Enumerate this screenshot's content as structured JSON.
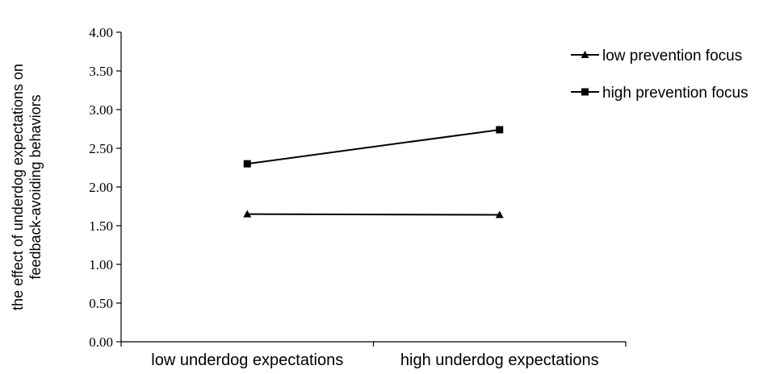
{
  "chart_data": {
    "type": "line",
    "title": "",
    "xlabel": "",
    "ylabel_lines": [
      "the effect of underdog expectations on",
      "feedback-avoiding behaviors"
    ],
    "categories": [
      "low underdog expectations",
      "high underdog expectations"
    ],
    "ylim": [
      0,
      4
    ],
    "yticks": [
      0,
      0.5,
      1,
      1.5,
      2,
      2.5,
      3,
      3.5,
      4
    ],
    "ytick_labels": [
      "0.00",
      "0.50",
      "1.00",
      "1.50",
      "2.00",
      "2.50",
      "3.00",
      "3.50",
      "4.00"
    ],
    "grid": false,
    "legend_position": "top-right",
    "series": [
      {
        "name": "low prevention focus",
        "marker": "triangle",
        "color": "#000000",
        "values": [
          1.65,
          1.64
        ]
      },
      {
        "name": "high prevention focus",
        "marker": "square",
        "color": "#000000",
        "values": [
          2.3,
          2.74
        ]
      }
    ]
  }
}
